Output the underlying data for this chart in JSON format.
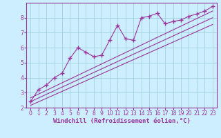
{
  "xlabel": "Windchill (Refroidissement éolien,°C)",
  "bg_color": "#cceeff",
  "grid_color": "#99ccdd",
  "line_color": "#993399",
  "scatter_x": [
    0,
    1,
    2,
    3,
    4,
    5,
    6,
    7,
    8,
    9,
    10,
    11,
    12,
    13,
    14,
    15,
    16,
    17,
    18,
    19,
    20,
    21,
    22,
    23
  ],
  "scatter_y": [
    2.4,
    3.2,
    3.5,
    4.0,
    4.3,
    5.3,
    6.0,
    5.7,
    5.4,
    5.5,
    6.5,
    7.5,
    6.6,
    6.5,
    8.0,
    8.1,
    8.3,
    7.6,
    7.75,
    7.85,
    8.1,
    8.25,
    8.45,
    8.75
  ],
  "reg_lines": [
    [
      0,
      2.15,
      23,
      7.55
    ],
    [
      0,
      2.4,
      23,
      8.0
    ],
    [
      0,
      2.65,
      23,
      8.45
    ]
  ],
  "xlim": [
    -0.5,
    23.5
  ],
  "ylim": [
    2.0,
    9.0
  ],
  "yticks": [
    2,
    3,
    4,
    5,
    6,
    7,
    8
  ],
  "xticks": [
    0,
    1,
    2,
    3,
    4,
    5,
    6,
    7,
    8,
    9,
    10,
    11,
    12,
    13,
    14,
    15,
    16,
    17,
    18,
    19,
    20,
    21,
    22,
    23
  ],
  "tick_fontsize": 5.5,
  "xlabel_fontsize": 6.5,
  "marker": "+",
  "markersize": 4,
  "markeredgewidth": 1.0,
  "linewidth": 0.8,
  "reg_linewidth": 0.8
}
